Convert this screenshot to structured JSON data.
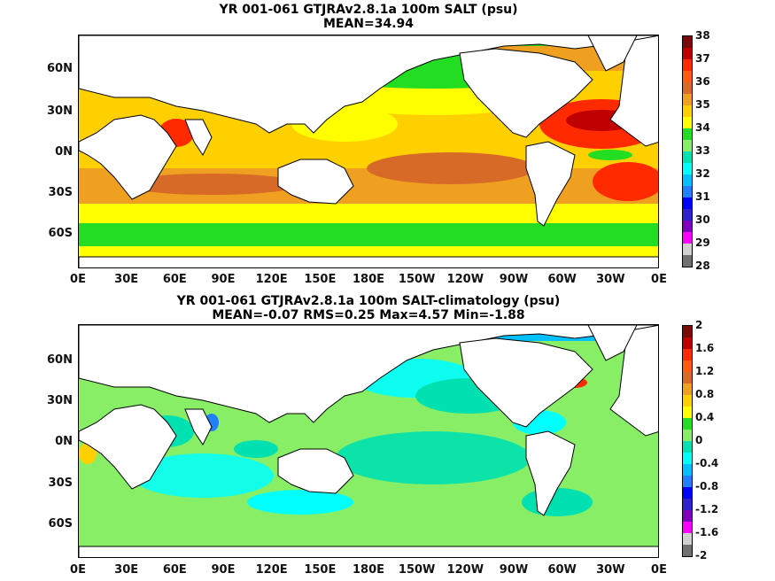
{
  "panels": [
    {
      "title_line1": "YR 001-061 GTJRAv2.8.1a 100m SALT (psu)",
      "title_line2": "MEAN=34.94",
      "colorbar": {
        "labels": [
          "38",
          "37",
          "36",
          "35",
          "34",
          "33",
          "32",
          "31",
          "30",
          "29",
          "28"
        ],
        "colors": [
          "#7a0a0a",
          "#c00000",
          "#ff2a00",
          "#ff5a10",
          "#d86a28",
          "#f0a020",
          "#ffd000",
          "#ffff00",
          "#22dd22",
          "#88ee66",
          "#00e0b0",
          "#00ffff",
          "#00c0ff",
          "#2080ff",
          "#0000ff",
          "#3020d0",
          "#8000c0",
          "#ff00ff",
          "#d0d0d0",
          "#707070"
        ]
      }
    },
    {
      "title_line1": "YR 001-061 GTJRAv2.8.1a 100m SALT-climatology (psu)",
      "title_line2": "MEAN=-0.07   RMS=0.25   Max=4.57   Min=-1.88",
      "colorbar": {
        "labels": [
          "2",
          "1.6",
          "1.2",
          "0.8",
          "0.4",
          "0",
          "-0.4",
          "-0.8",
          "-1.2",
          "-1.6",
          "-2"
        ],
        "colors": [
          "#7a0a0a",
          "#c00000",
          "#ff2a00",
          "#ff5a10",
          "#d86a28",
          "#f0a020",
          "#ffd000",
          "#ffff00",
          "#22dd22",
          "#88ee66",
          "#00e0b0",
          "#00ffff",
          "#00c0ff",
          "#2080ff",
          "#0000ff",
          "#3020d0",
          "#8000c0",
          "#ff00ff",
          "#d0d0d0",
          "#707070"
        ]
      }
    }
  ],
  "x_ticks": [
    "0E",
    "30E",
    "60E",
    "90E",
    "120E",
    "150E",
    "180E",
    "150W",
    "120W",
    "90W",
    "60W",
    "30W",
    "0E"
  ],
  "y_ticks": [
    "60N",
    "30N",
    "0N",
    "30S",
    "60S"
  ]
}
